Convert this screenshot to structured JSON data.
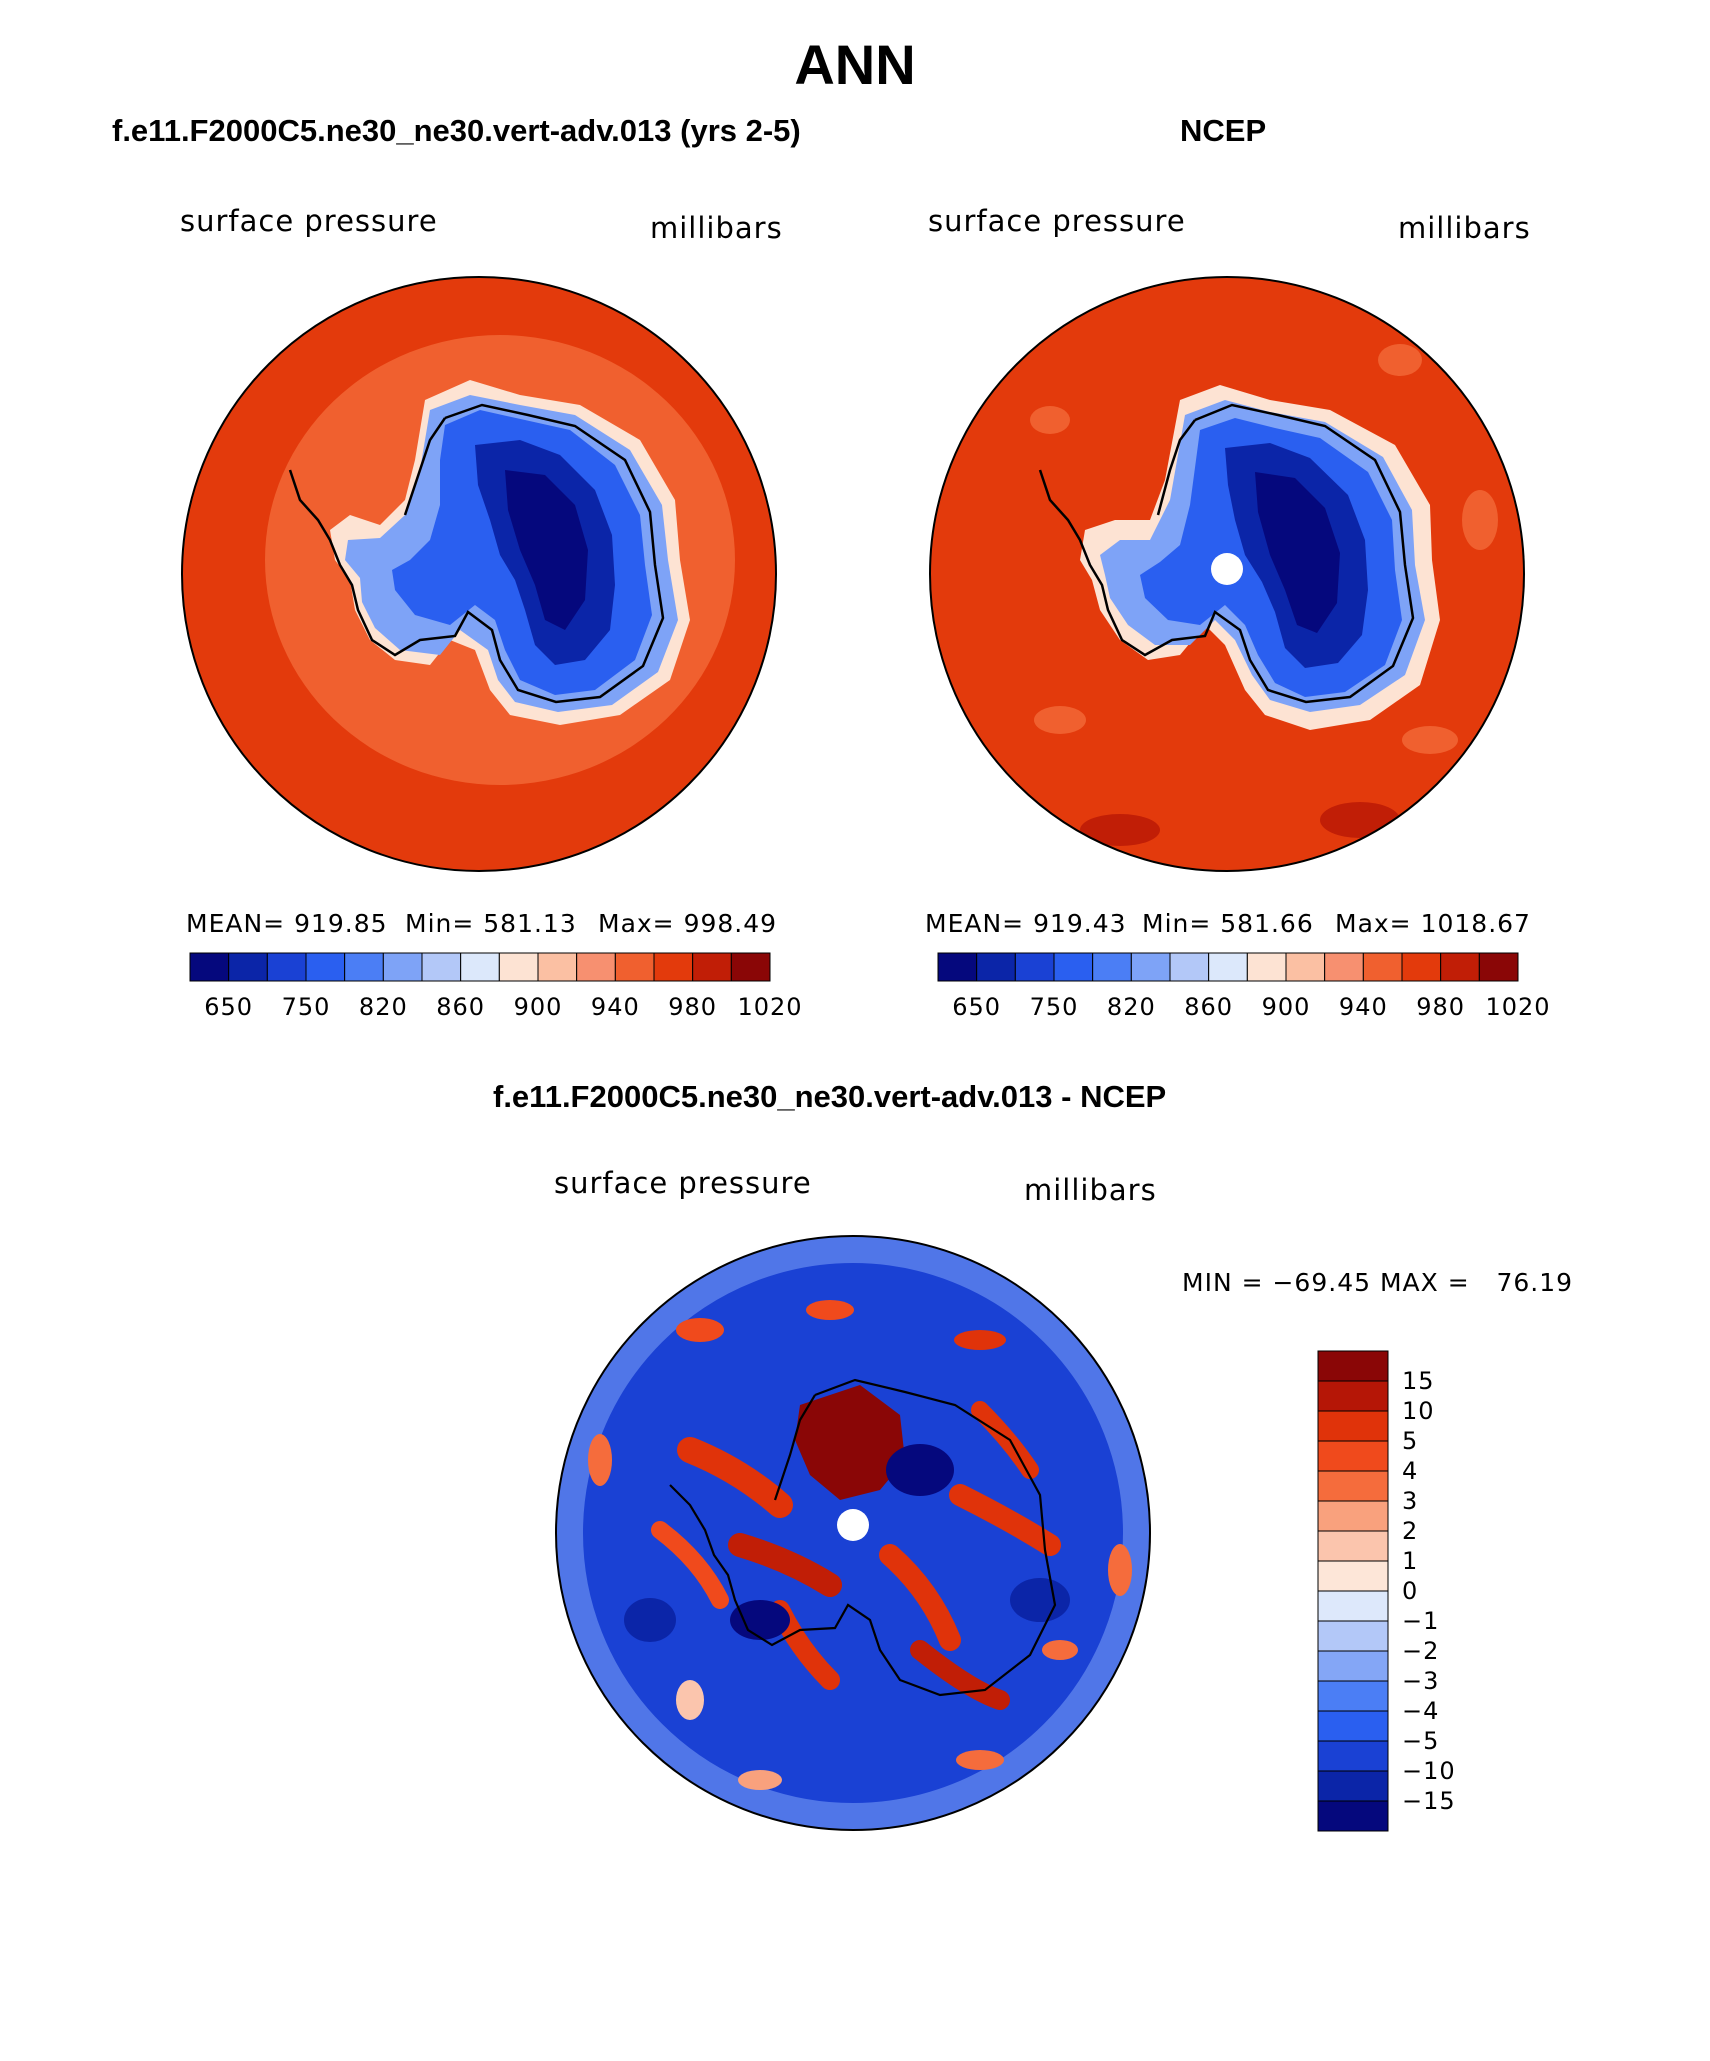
{
  "header": {
    "title": "ANN"
  },
  "panels": [
    {
      "title": "f.e11.F2000C5.ne30_ne30.vert-adv.013 (yrs 2-5)",
      "variable": "surface pressure",
      "units": "millibars",
      "stats": {
        "mean": "MEAN= 919.85",
        "min": "Min= 581.13",
        "max": "Max= 998.49"
      }
    },
    {
      "title": "NCEP",
      "variable": "surface pressure",
      "units": "millibars",
      "stats": {
        "mean": "MEAN= 919.43",
        "min": "Min= 581.66",
        "max": "Max= 1018.67"
      }
    },
    {
      "title": "f.e11.F2000C5.ne30_ne30.vert-adv.013 - NCEP",
      "variable": "surface pressure",
      "units": "millibars",
      "stats": {
        "minmax": "MIN = −69.45 MAX =   76.19"
      }
    }
  ],
  "colorbars": {
    "field": {
      "labels": [
        "650",
        "750",
        "820",
        "860",
        "900",
        "940",
        "980",
        "1020"
      ],
      "colors": [
        "#05087d",
        "#0b25a8",
        "#1a41d4",
        "#2a5ff0",
        "#4b7ef5",
        "#7ea3f7",
        "#b3c8f8",
        "#dce8fb",
        "#fde3d3",
        "#fbc0a3",
        "#f79070",
        "#f0602f",
        "#e33a0c",
        "#c11e06",
        "#8a0606"
      ]
    },
    "diff": {
      "labels": [
        "15",
        "10",
        "5",
        "4",
        "3",
        "2",
        "1",
        "0",
        "−1",
        "−2",
        "−3",
        "−4",
        "−5",
        "−10",
        "−15"
      ],
      "colors": [
        "#8a0606",
        "#b51606",
        "#e0330a",
        "#f04a1c",
        "#f56c3c",
        "#f9a17d",
        "#fbc5ad",
        "#fde6d8",
        "#dde8fb",
        "#b3c8f8",
        "#84a6f6",
        "#4b7ef5",
        "#2a5ff0",
        "#1a41d4",
        "#0b25a8",
        "#05087d"
      ]
    }
  },
  "chart_data": [
    {
      "type": "heatmap",
      "title": "f.e11.F2000C5.ne30_ne30.vert-adv.013 (yrs 2-5)",
      "variable": "surface pressure",
      "units": "millibars",
      "projection": "south polar stereographic",
      "mean": 919.85,
      "min": 581.13,
      "max": 998.49,
      "contour_levels": [
        650,
        700,
        750,
        800,
        820,
        840,
        860,
        880,
        900,
        920,
        940,
        960,
        980,
        1000,
        1020
      ]
    },
    {
      "type": "heatmap",
      "title": "NCEP",
      "variable": "surface pressure",
      "units": "millibars",
      "projection": "south polar stereographic",
      "mean": 919.43,
      "min": 581.66,
      "max": 1018.67,
      "contour_levels": [
        650,
        700,
        750,
        800,
        820,
        840,
        860,
        880,
        900,
        920,
        940,
        960,
        980,
        1000,
        1020
      ]
    },
    {
      "type": "heatmap",
      "title": "f.e11.F2000C5.ne30_ne30.vert-adv.013 - NCEP",
      "variable": "surface pressure",
      "units": "millibars",
      "projection": "south polar stereographic",
      "min": -69.45,
      "max": 76.19,
      "contour_levels": [
        -15,
        -10,
        -5,
        -4,
        -3,
        -2,
        -1,
        0,
        1,
        2,
        3,
        4,
        5,
        10,
        15
      ]
    }
  ]
}
